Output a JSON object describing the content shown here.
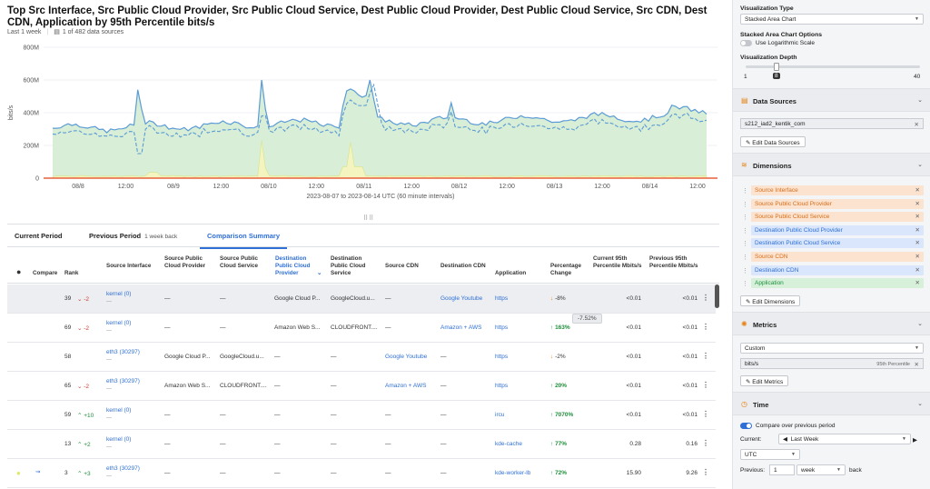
{
  "header": {
    "title": "Top Src Interface, Src Public Cloud Provider, Src Public Cloud Service, Dest Public Cloud Provider, Dest Public Cloud Service, Src CDN, Dest CDN, Application by 95th Percentile bits/s",
    "range": "Last 1 week",
    "sources": "1 of 482 data sources"
  },
  "chart_data": {
    "type": "area",
    "ylabel": "bits/s",
    "ylim": [
      0,
      800
    ],
    "yticks": [
      "800M",
      "600M",
      "400M",
      "200M",
      "0"
    ],
    "xticks": [
      "08/8",
      "12:00",
      "08/9",
      "12:00",
      "08/10",
      "12:00",
      "08/11",
      "12:00",
      "08/12",
      "12:00",
      "08/13",
      "12:00",
      "08/14",
      "12:00"
    ],
    "xlabel": "2023-08-07 to 2023-08-14 UTC (60 minute intervals)"
  },
  "tabs": [
    {
      "label": "Current Period",
      "hint": ""
    },
    {
      "label": "Previous Period",
      "hint": "1 week back"
    },
    {
      "label": "Comparison Summary",
      "hint": ""
    }
  ],
  "columns": [
    "Compare",
    "Rank",
    "Source Interface",
    "Source Public Cloud Provider",
    "Source Public Cloud Service",
    "Destination Public Cloud Provider",
    "Destination Public Cloud Service",
    "Source CDN",
    "Destination CDN",
    "Application",
    "Percentage Change",
    "Current 95th Percentile Mbits/s",
    "Previous 95th Percentile Mbits/s"
  ],
  "rows": [
    {
      "rank": "39",
      "delta": "-2",
      "dir": "down",
      "iface": "kernel (0)",
      "sub": "—",
      "scp": "—",
      "scs": "—",
      "dcp": "Google Cloud P...",
      "dcs": "GoogleCloud.u...",
      "scdn": "—",
      "dcdn": "Google Youtube",
      "app": "https",
      "pct": "-8%",
      "pdir": "down",
      "cur": "<0.01",
      "prev": "<0.01"
    },
    {
      "rank": "69",
      "delta": "-2",
      "dir": "down",
      "iface": "kernel (0)",
      "sub": "—",
      "scp": "—",
      "scs": "—",
      "dcp": "Amazon Web S...",
      "dcs": "CLOUDFRONT....",
      "scdn": "—",
      "dcdn": "Amazon + AWS",
      "app": "https",
      "pct": "163%",
      "pdir": "up",
      "cur": "<0.01",
      "prev": "<0.01"
    },
    {
      "rank": "58",
      "delta": "",
      "dir": "",
      "iface": "eth3 (30297)",
      "sub": "—",
      "scp": "Google Cloud P...",
      "scs": "GoogleCloud.u...",
      "dcp": "—",
      "dcs": "—",
      "scdn": "Google Youtube",
      "dcdn": "—",
      "app": "https",
      "pct": "-2%",
      "pdir": "down",
      "cur": "<0.01",
      "prev": "<0.01"
    },
    {
      "rank": "65",
      "delta": "-2",
      "dir": "down",
      "iface": "eth3 (30297)",
      "sub": "—",
      "scp": "Amazon Web S...",
      "scs": "CLOUDFRONT....",
      "dcp": "—",
      "dcs": "—",
      "scdn": "Amazon + AWS",
      "dcdn": "—",
      "app": "https",
      "pct": "20%",
      "pdir": "up",
      "cur": "<0.01",
      "prev": "<0.01"
    },
    {
      "rank": "59",
      "delta": "+10",
      "dir": "up",
      "iface": "kernel (0)",
      "sub": "—",
      "scp": "—",
      "scs": "—",
      "dcp": "—",
      "dcs": "—",
      "scdn": "—",
      "dcdn": "—",
      "app": "ircu",
      "pct": "7070%",
      "pdir": "up",
      "cur": "<0.01",
      "prev": "<0.01"
    },
    {
      "rank": "13",
      "delta": "+2",
      "dir": "up",
      "iface": "kernel (0)",
      "sub": "—",
      "scp": "—",
      "scs": "—",
      "dcp": "—",
      "dcs": "—",
      "scdn": "—",
      "dcdn": "—",
      "app": "kde-cache",
      "pct": "77%",
      "pdir": "up",
      "cur": "0.28",
      "prev": "0.16"
    },
    {
      "rank": "3",
      "delta": "+3",
      "dir": "up",
      "iface": "eth3 (30297)",
      "sub": "—",
      "scp": "—",
      "scs": "—",
      "dcp": "—",
      "dcs": "—",
      "scdn": "—",
      "dcdn": "—",
      "app": "kde-worker-lb",
      "pct": "72%",
      "pdir": "up",
      "cur": "15.90",
      "prev": "9.26"
    }
  ],
  "tooltip": "-7.52%",
  "panel": {
    "viz_type_label": "Visualization Type",
    "viz_type": "Stacked Area Chart",
    "options_label": "Stacked Area Chart Options",
    "log_label": "Use Logarithmic Scale",
    "depth_label": "Visualization Depth",
    "depth_min": "1",
    "depth_val": "8",
    "depth_max": "40",
    "ds_title": "Data Sources",
    "ds_value": "s212_iad2_kentik_com",
    "ds_btn": "Edit Data Sources",
    "dim_title": "Dimensions",
    "dims": [
      {
        "label": "Source Interface",
        "kind": "src"
      },
      {
        "label": "Source Public Cloud Provider",
        "kind": "src"
      },
      {
        "label": "Source Public Cloud Service",
        "kind": "src"
      },
      {
        "label": "Destination Public Cloud Provider",
        "kind": "dst"
      },
      {
        "label": "Destination Public Cloud Service",
        "kind": "dst"
      },
      {
        "label": "Source CDN",
        "kind": "src"
      },
      {
        "label": "Destination CDN",
        "kind": "dst"
      },
      {
        "label": "Application",
        "kind": "app"
      }
    ],
    "dim_btn": "Edit Dimensions",
    "met_title": "Metrics",
    "met_select": "Custom",
    "met_value": "bits/s",
    "met_hint": "95th Percentile",
    "met_btn": "Edit Metrics",
    "time_title": "Time",
    "compare_label": "Compare over previous period",
    "current_label": "Current:",
    "current_val": "Last Week",
    "tz": "UTC",
    "prev_label": "Previous:",
    "prev_n": "1",
    "prev_unit": "week",
    "back": "back"
  },
  "colors": {
    "accent": "#2f6fd6",
    "area": "#d8eed6",
    "line": "#5b9bd5",
    "spike": "#f4f4c0",
    "red": "#d0342c",
    "green": "#1e8f3a"
  }
}
